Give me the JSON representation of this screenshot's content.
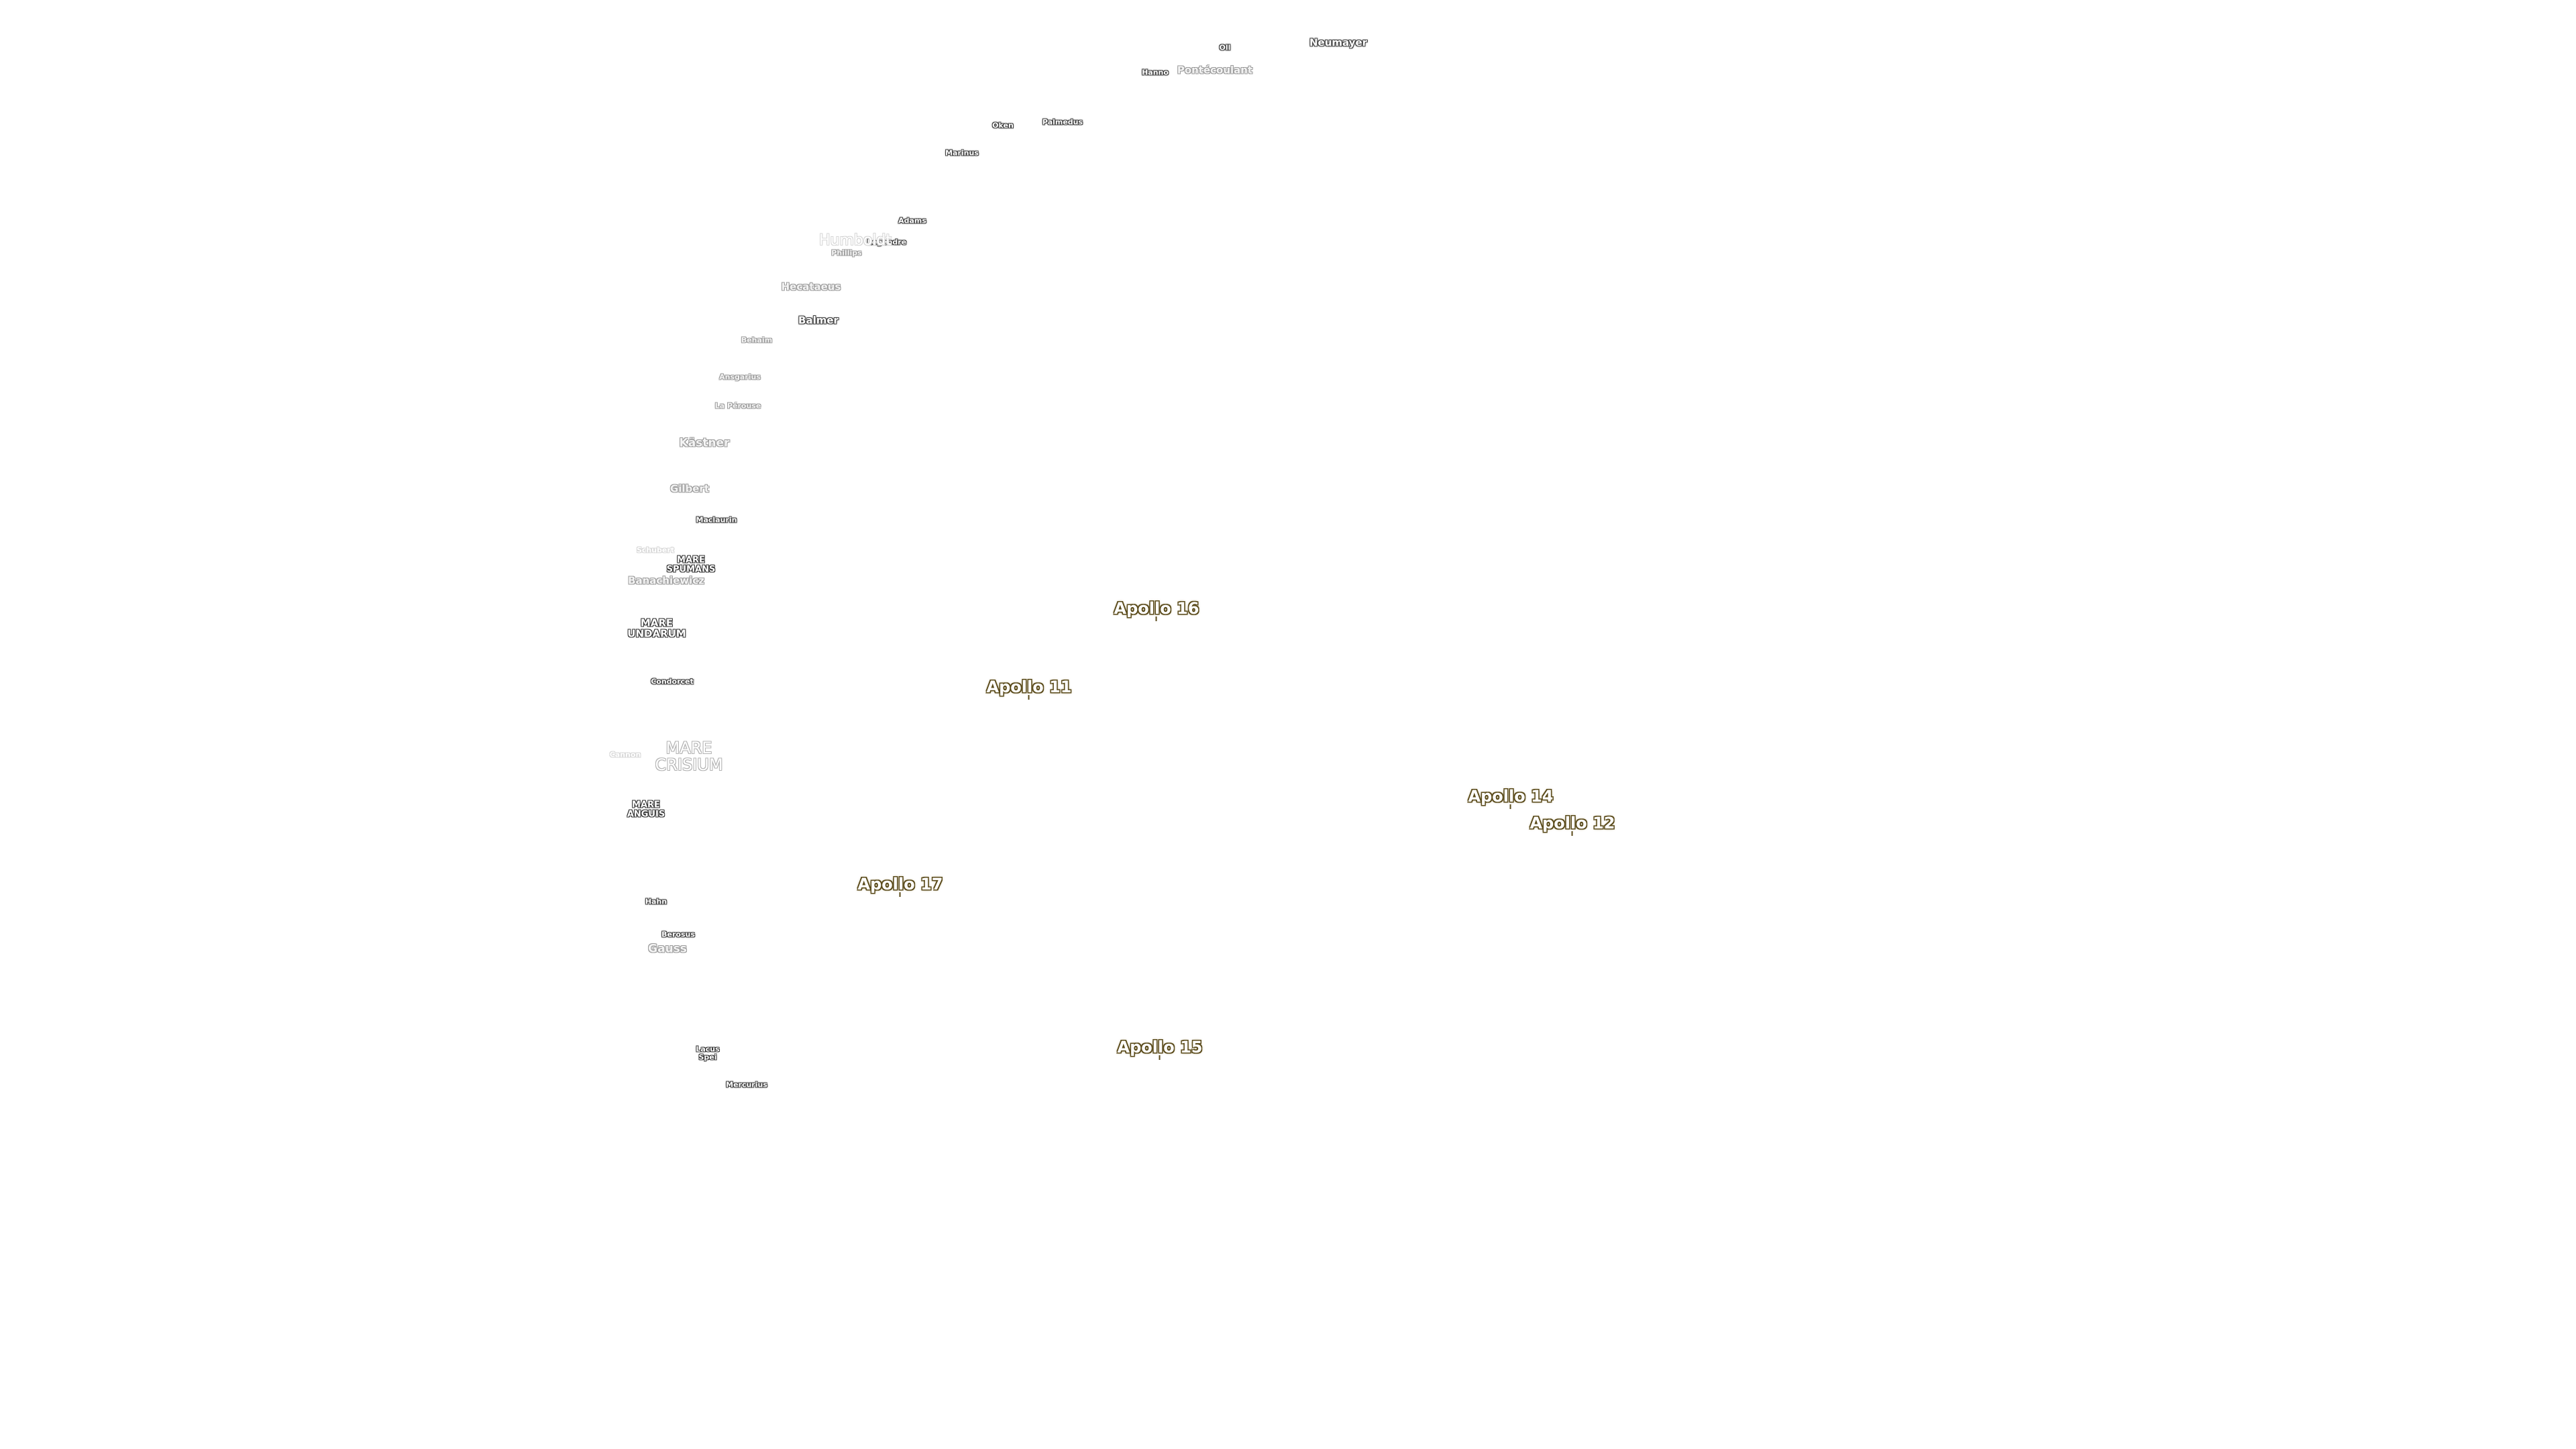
{
  "labels": [
    {
      "text": "Neumayer",
      "kind": "crater"
    },
    {
      "text": "Oll",
      "kind": "crater tiny"
    },
    {
      "text": "Hanno",
      "kind": "crater tiny"
    },
    {
      "text": "Pontécoulant",
      "kind": "crater dim"
    },
    {
      "text": "Palmedus",
      "kind": "crater tiny"
    },
    {
      "text": "Oken",
      "kind": "crater tiny"
    },
    {
      "text": "Marinus",
      "kind": "crater tiny"
    },
    {
      "text": "Adams",
      "kind": "crater tiny"
    },
    {
      "text": "Legendre",
      "kind": "crater tiny"
    },
    {
      "text": "Humboldt",
      "kind": "crater big faint"
    },
    {
      "text": "Phillips",
      "kind": "crater tiny dim"
    },
    {
      "text": "Hecataeus",
      "kind": "crater dim"
    },
    {
      "text": "Balmer",
      "kind": "crater"
    },
    {
      "text": "Behaim",
      "kind": "crater tiny dim"
    },
    {
      "text": "Ansgarius",
      "kind": "crater tiny dim"
    },
    {
      "text": "La Pérouse",
      "kind": "crater tiny dim"
    },
    {
      "text": "Kästner",
      "kind": "crater med dim"
    },
    {
      "text": "Gilbert",
      "kind": "crater dim"
    },
    {
      "text": "Maclaurin",
      "kind": "crater tiny"
    },
    {
      "text": "Schubert",
      "kind": "crater tiny faint"
    },
    {
      "text": "Banachiewicz",
      "kind": "crater dim"
    },
    {
      "text": "Condorcet",
      "kind": "crater tiny"
    },
    {
      "text": "Cannon",
      "kind": "crater tiny faint"
    },
    {
      "text": "Hahn",
      "kind": "crater tiny"
    },
    {
      "text": "Berosus",
      "kind": "crater tiny"
    },
    {
      "text": "Gauss",
      "kind": "crater med dim"
    },
    {
      "text": "Mercurius",
      "kind": "crater tiny"
    },
    {
      "text": "MARE\nSPUMANS",
      "kind": "mare"
    },
    {
      "text": "MARE\nUNDARUM",
      "kind": "mare"
    },
    {
      "text": "MARE\nCRISIUM",
      "kind": "mare large"
    },
    {
      "text": "MARE\nANGUIS",
      "kind": "mare"
    },
    {
      "text": "Lacus\nSpei",
      "kind": "mare"
    },
    {
      "text": "Apollo 16",
      "kind": "apollo"
    },
    {
      "text": "Apollo 11",
      "kind": "apollo"
    },
    {
      "text": "Apollo 14",
      "kind": "apollo"
    },
    {
      "text": "Apollo 12",
      "kind": "apollo"
    },
    {
      "text": "Apollo 17",
      "kind": "apollo"
    },
    {
      "text": "Apollo 15",
      "kind": "apollo"
    }
  ]
}
